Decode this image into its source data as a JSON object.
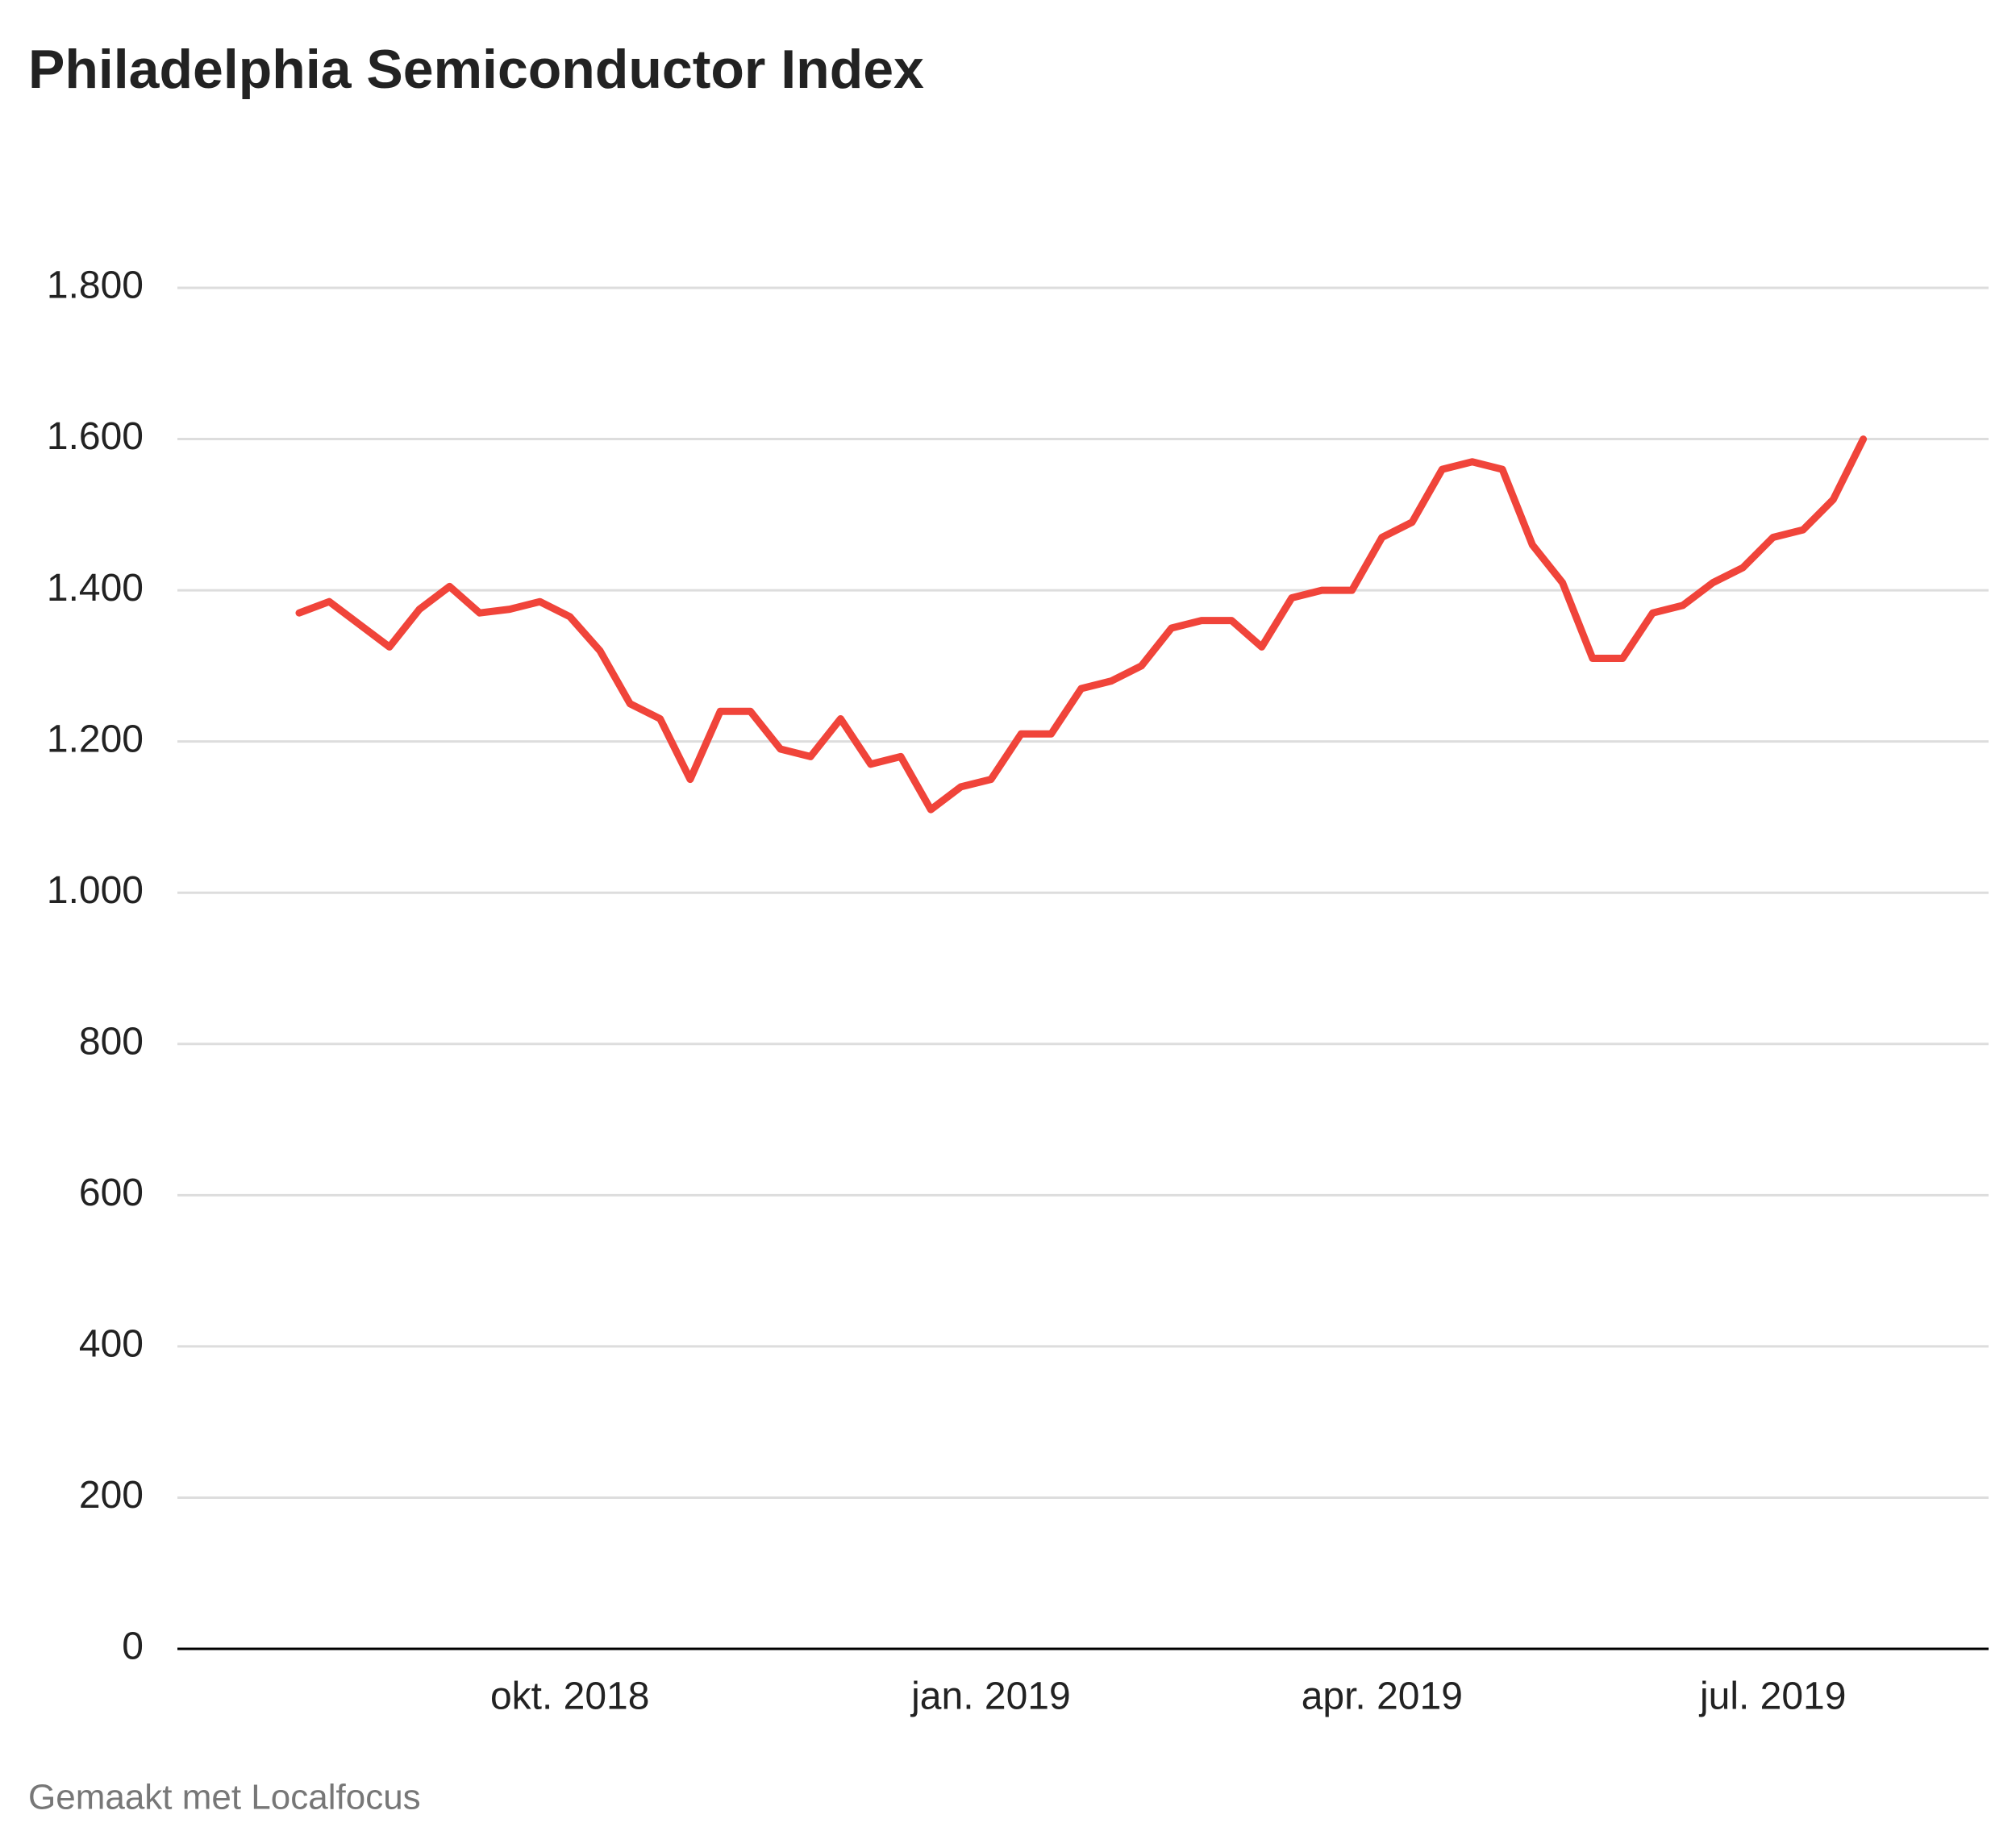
{
  "chart_data": {
    "type": "line",
    "title": "Philadelphia Semiconductor Index",
    "categories": [
      null,
      null,
      null,
      null,
      null,
      null,
      null,
      null,
      null,
      "okt. 2018",
      null,
      null,
      null,
      null,
      null,
      null,
      null,
      null,
      null,
      null,
      null,
      null,
      null,
      "jan. 2019",
      null,
      null,
      null,
      null,
      null,
      null,
      null,
      null,
      null,
      null,
      null,
      null,
      "apr. 2019",
      null,
      null,
      null,
      null,
      null,
      null,
      null,
      null,
      null,
      null,
      null,
      null,
      "jul. 2019",
      null,
      null,
      null
    ],
    "values": [
      1370,
      1385,
      1355,
      1325,
      1375,
      1405,
      1370,
      1375,
      1385,
      1365,
      1320,
      1250,
      1230,
      1150,
      1240,
      1240,
      1190,
      1180,
      1230,
      1170,
      1180,
      1110,
      1140,
      1150,
      1210,
      1210,
      1270,
      1280,
      1300,
      1350,
      1360,
      1360,
      1325,
      1390,
      1400,
      1400,
      1470,
      1490,
      1560,
      1570,
      1560,
      1460,
      1410,
      1310,
      1310,
      1370,
      1380,
      1410,
      1430,
      1470,
      1480,
      1520,
      1600
    ],
    "color": "#f0443a",
    "ylim": [
      0,
      1800
    ],
    "yticks": [
      0,
      200,
      400,
      600,
      800,
      {
        "value": 1000,
        "label": "1.000"
      },
      {
        "value": 1200,
        "label": "1.200"
      },
      {
        "value": 1400,
        "label": "1.400"
      },
      {
        "value": 1600,
        "label": "1.600"
      },
      {
        "value": 1800,
        "label": "1.800"
      }
    ],
    "grid": true,
    "source": "Gemaakt met Localfocus"
  }
}
